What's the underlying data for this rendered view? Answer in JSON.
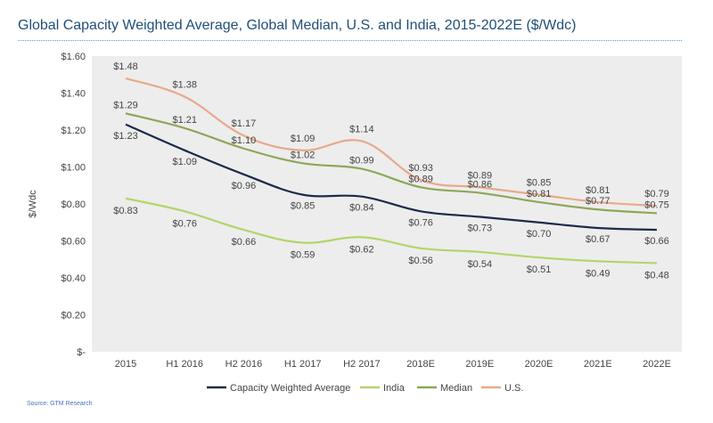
{
  "title": "Global Capacity Weighted Average, Global Median, U.S. and India, 2015-2022E ($/Wdc)",
  "source": "Source: GTM Research",
  "chart_data": {
    "type": "line",
    "title": "Global Capacity Weighted Average, Global Median, U.S. and India, 2015-2022E ($/Wdc)",
    "xlabel": "",
    "ylabel": "$/Wdc",
    "categories": [
      "2015",
      "H1 2016",
      "H2 2016",
      "H1 2017",
      "H2 2017",
      "2018E",
      "2019E",
      "2020E",
      "2021E",
      "2022E"
    ],
    "ylim": [
      0,
      1.6
    ],
    "yticks": [
      0,
      0.2,
      0.4,
      0.6,
      0.8,
      1.0,
      1.2,
      1.4,
      1.6
    ],
    "ytick_labels": [
      "$-",
      "$0.20",
      "$0.40",
      "$0.60",
      "$0.80",
      "$1.00",
      "$1.20",
      "$1.40",
      "$1.60"
    ],
    "grid": false,
    "legend": "bottom",
    "series": [
      {
        "name": "Capacity Weighted Average",
        "color": "#1c2a4a",
        "values": [
          1.23,
          1.09,
          0.96,
          0.85,
          0.84,
          0.76,
          0.73,
          0.7,
          0.67,
          0.66
        ],
        "labels": [
          "$1.23",
          "$1.09",
          "$0.96",
          "$0.85",
          "$0.84",
          "$0.76",
          "$0.73",
          "$0.70",
          "$0.67",
          "$0.66"
        ]
      },
      {
        "name": "India",
        "color": "#b3d56a",
        "values": [
          0.83,
          0.76,
          0.66,
          0.59,
          0.62,
          0.56,
          0.54,
          0.51,
          0.49,
          0.48
        ],
        "labels": [
          "$0.83",
          "$0.76",
          "$0.66",
          "$0.59",
          "$0.62",
          "$0.56",
          "$0.54",
          "$0.51",
          "$0.49",
          "$0.48"
        ]
      },
      {
        "name": "Median",
        "color": "#8fa65a",
        "values": [
          1.29,
          1.21,
          1.1,
          1.02,
          0.99,
          0.89,
          0.86,
          0.81,
          0.77,
          0.75
        ],
        "labels": [
          "$1.29",
          "$1.21",
          "$1.10",
          "$1.02",
          "$0.99",
          "$0.89",
          "$0.86",
          "$0.81",
          "$0.77",
          "$0.75"
        ]
      },
      {
        "name": "U.S.",
        "color": "#e8a98a",
        "values": [
          1.48,
          1.38,
          1.17,
          1.09,
          1.14,
          0.93,
          0.89,
          0.85,
          0.81,
          0.79
        ],
        "labels": [
          "$1.48",
          "$1.38",
          "$1.17",
          "$1.09",
          "$1.14",
          "$0.93",
          "$0.89",
          "$0.85",
          "$0.81",
          "$0.79"
        ]
      }
    ]
  }
}
